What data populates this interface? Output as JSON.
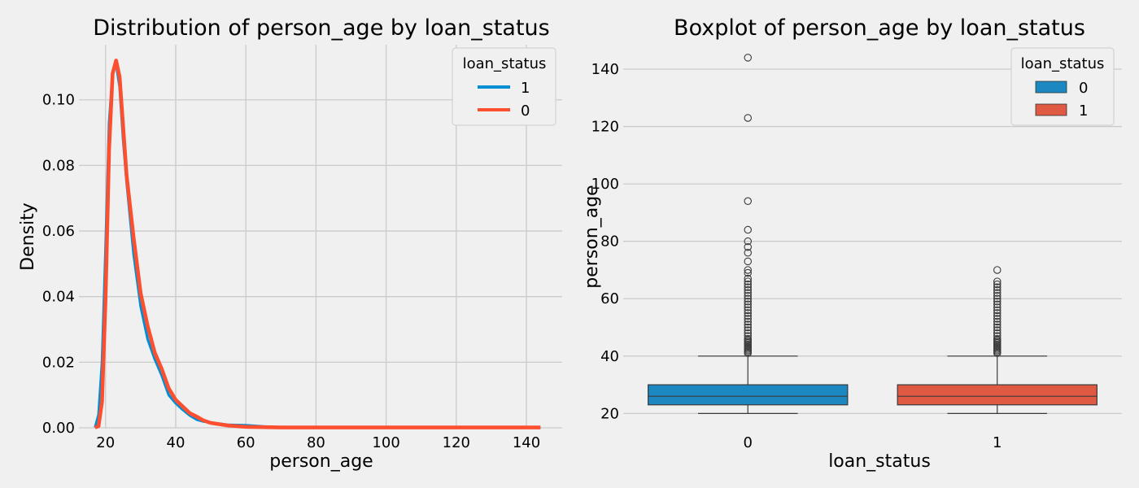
{
  "figure": {
    "background": "#f0f0f0",
    "grid_color": "#cbcbcb"
  },
  "chart_data": [
    {
      "type": "line",
      "title": "Distribution of person_age by loan_status",
      "xlabel": "person_age",
      "ylabel": "Density",
      "xlim": [
        12.4,
        150.2
      ],
      "ylim": [
        0,
        0.1168
      ],
      "xticks": [
        20,
        40,
        60,
        80,
        100,
        120,
        140
      ],
      "yticks": [
        0.0,
        0.02,
        0.04,
        0.06,
        0.08,
        0.1
      ],
      "ytick_labels": [
        "0.00",
        "0.02",
        "0.04",
        "0.06",
        "0.08",
        "0.10"
      ],
      "grid": true,
      "legend": {
        "title": "loan_status",
        "placement": "top-right"
      },
      "series": [
        {
          "name": "1",
          "color": "#008fd5",
          "x": [
            17,
            18,
            19,
            20,
            21,
            22,
            23,
            24,
            25,
            26,
            28,
            30,
            32,
            34,
            36,
            38,
            40,
            42,
            44,
            46,
            48,
            50,
            55,
            60,
            65,
            70,
            80,
            100,
            120,
            144
          ],
          "y": [
            0.0001,
            0.004,
            0.02,
            0.055,
            0.093,
            0.108,
            0.111,
            0.104,
            0.088,
            0.075,
            0.053,
            0.037,
            0.027,
            0.021,
            0.016,
            0.01,
            0.0075,
            0.0055,
            0.0038,
            0.0025,
            0.0019,
            0.0016,
            0.0009,
            0.0008,
            0.0004,
            0.0002,
            0.0001,
            0.0001,
            0.0001,
            0.0001
          ]
        },
        {
          "name": "0",
          "color": "#fc4f30",
          "x": [
            17,
            18,
            19,
            20,
            21,
            22,
            23,
            24,
            25,
            26,
            28,
            30,
            32,
            34,
            36,
            38,
            40,
            42,
            44,
            46,
            48,
            50,
            55,
            60,
            65,
            70,
            80,
            100,
            120,
            144
          ],
          "y": [
            0.0001,
            0.0005,
            0.008,
            0.04,
            0.085,
            0.108,
            0.112,
            0.107,
            0.092,
            0.077,
            0.058,
            0.041,
            0.031,
            0.023,
            0.018,
            0.012,
            0.0085,
            0.0065,
            0.0045,
            0.0034,
            0.0022,
            0.0015,
            0.0007,
            0.0003,
            0.0002,
            0.0001,
            0.0001,
            0.0001,
            0.0001,
            0.0001
          ]
        }
      ]
    },
    {
      "type": "boxplot",
      "title": "Boxplot of person_age by loan_status",
      "xlabel": "loan_status",
      "ylabel": "person_age",
      "categories": [
        "0",
        "1"
      ],
      "ylim": [
        15,
        148.5
      ],
      "yticks": [
        20,
        40,
        60,
        80,
        100,
        120,
        140
      ],
      "grid": true,
      "legend": {
        "title": "loan_status",
        "placement": "top-right"
      },
      "boxes": [
        {
          "name": "0",
          "color": "#1b88c2",
          "whisker_low": 20,
          "q1": 23,
          "median": 26,
          "q3": 30,
          "whisker_high": 40,
          "outliers": [
            41,
            41.5,
            42,
            42.5,
            43,
            43.5,
            44,
            44.5,
            45,
            45.5,
            46,
            47,
            48,
            49,
            50,
            51,
            52,
            53,
            54,
            55,
            56,
            57,
            58,
            59,
            60,
            61,
            62,
            63,
            64,
            65,
            66,
            67,
            69,
            70,
            73,
            76,
            78,
            80,
            84,
            94,
            123,
            144
          ]
        },
        {
          "name": "1",
          "color": "#e05a43",
          "whisker_low": 20,
          "q1": 23,
          "median": 26,
          "q3": 30,
          "whisker_high": 40,
          "outliers": [
            41,
            41.5,
            42,
            42.5,
            43,
            43.5,
            44,
            44.5,
            45,
            45.5,
            46,
            47,
            48,
            49,
            50,
            51,
            52,
            53,
            54,
            55,
            56,
            57,
            58,
            59,
            60,
            61,
            62,
            63,
            64,
            65,
            66,
            70
          ]
        }
      ]
    }
  ]
}
